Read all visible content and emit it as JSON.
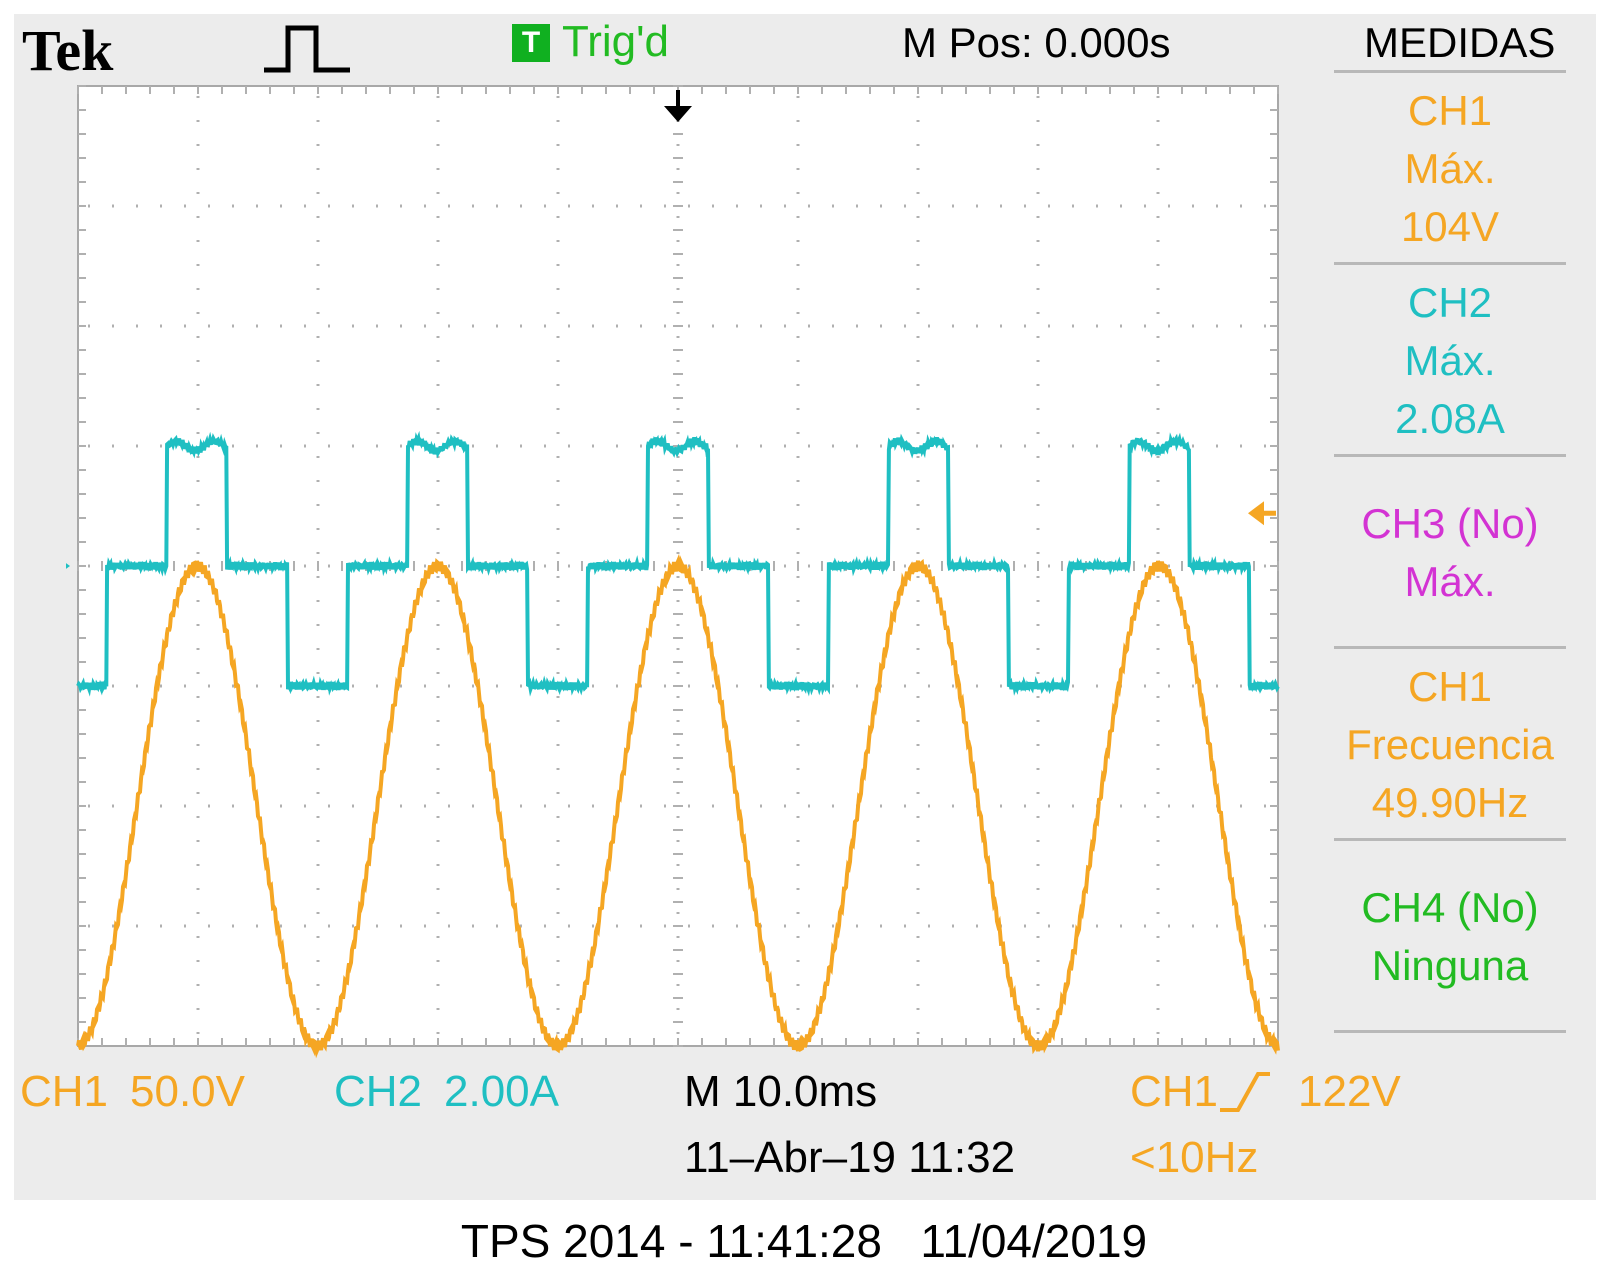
{
  "header": {
    "brand": "Tek",
    "acquire_icon": "pulse-run-icon",
    "trigger_badge": "T",
    "trigger_status": "Trig'd",
    "horizontal_position": "M Pos: 0.000s",
    "measurements_title": "MEDIDAS"
  },
  "measurements": [
    {
      "lines": [
        "CH1",
        "Máx.",
        "104V"
      ],
      "color": "#f5a623"
    },
    {
      "lines": [
        "CH2",
        "Máx.",
        "2.08A"
      ],
      "color": "#1fbfc2"
    },
    {
      "lines": [
        "CH3 (No)",
        "Máx."
      ],
      "color": "#d333d3"
    },
    {
      "lines": [
        "CH1",
        "Frecuencia",
        "49.90Hz"
      ],
      "color": "#f5a623"
    },
    {
      "lines": [
        "CH4 (No)",
        "Ninguna"
      ],
      "color": "#22bb22"
    }
  ],
  "status_bar": {
    "ch1_label": "CH1",
    "ch1_scale": "50.0V",
    "ch2_label": "CH2",
    "ch2_scale": "2.00A",
    "timebase": "M 10.0ms",
    "datetime": "11–Abr–19 11:32",
    "trigger_source": "CH1",
    "trigger_slope_icon": "rising-edge-icon",
    "trigger_level": "122V",
    "trigger_frequency": "<10Hz"
  },
  "footer": "TPS 2014 - 11:41:28   11/04/2019",
  "chart_data": {
    "type": "line",
    "grid": true,
    "xlim": [
      -50,
      50
    ],
    "x_unit": "ms",
    "divisions": {
      "x": 10,
      "y": 8
    },
    "ch2_marker_label": "2",
    "series": [
      {
        "name": "CH1",
        "color": "#f5a623",
        "unit": "V",
        "volts_per_div": 50,
        "ground_div": -2,
        "frequency_hz": 49.9,
        "amplitude": 100,
        "offset": 0,
        "peak_times_ms": [
          -40,
          -20,
          0,
          20,
          40
        ],
        "trigger_level": 122
      },
      {
        "name": "CH2",
        "color": "#1fbfc2",
        "unit": "A",
        "amps_per_div": 2,
        "ground_div": 0,
        "frequency_hz": 49.9,
        "step_levels": [
          2.0,
          0.0,
          -2.0,
          0.0
        ],
        "max": 2.08
      }
    ]
  }
}
